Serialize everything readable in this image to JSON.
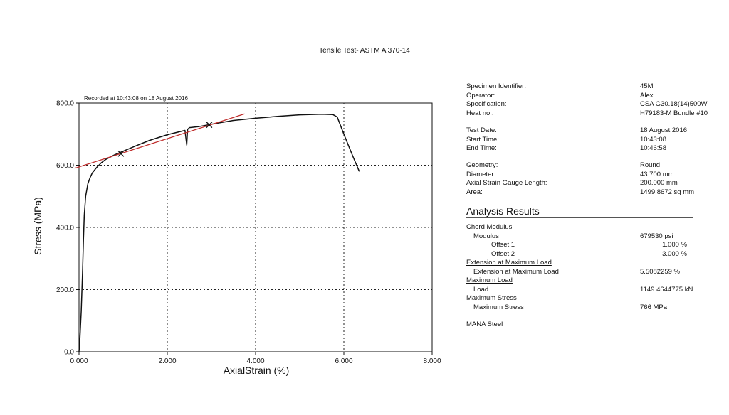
{
  "title": "Tensile Test- ASTM A 370-14",
  "chart_data": {
    "type": "line",
    "title": "Tensile Test- ASTM A 370-14",
    "annotation": "Recorded at 10:43:08 on 18 August 2016",
    "xlabel": "AxialStrain (%)",
    "ylabel": "Stress (MPa)",
    "xlim": [
      0,
      8
    ],
    "ylim": [
      0,
      800
    ],
    "xticks": [
      "0.000",
      "2.000",
      "4.000",
      "6.000",
      "8.000"
    ],
    "yticks": [
      "0.0",
      "200.0",
      "400.0",
      "600.0",
      "800.0"
    ],
    "grid": true,
    "series": [
      {
        "color": "#111111",
        "x": [
          0.0,
          0.02,
          0.05,
          0.08,
          0.1,
          0.12,
          0.15,
          0.2,
          0.25,
          0.3,
          0.4,
          0.5,
          0.6,
          0.8,
          1.0,
          1.3,
          1.6,
          2.0,
          2.4,
          2.44,
          2.46,
          2.5,
          2.7,
          3.0,
          3.5,
          4.0,
          4.5,
          5.0,
          5.5,
          5.75,
          5.85,
          6.0,
          6.2,
          6.35
        ],
        "y": [
          0,
          40,
          130,
          260,
          360,
          440,
          500,
          540,
          560,
          575,
          593,
          607,
          618,
          633,
          645,
          663,
          680,
          698,
          712,
          665,
          715,
          721,
          724,
          732,
          744,
          751,
          757,
          762,
          764,
          763,
          755,
          700,
          630,
          580
        ]
      },
      {
        "color": "#c0302f",
        "x": [
          -0.1,
          3.75
        ],
        "y": [
          590,
          765
        ]
      }
    ],
    "markers": [
      {
        "x": 0.95,
        "y": 637
      },
      {
        "x": 2.95,
        "y": 730
      }
    ]
  },
  "specimen": [
    {
      "label": "Specimen Identifier:",
      "value": "45M"
    },
    {
      "label": "Operator:",
      "value": "Alex"
    },
    {
      "label": "Specification:",
      "value": "CSA G30.18(14)500W"
    },
    {
      "label": "Heat no.:",
      "value": "H79183-M Bundle #10"
    }
  ],
  "timing": [
    {
      "label": "Test Date:",
      "value": "18 August 2016"
    },
    {
      "label": "Start Time:",
      "value": "10:43:08"
    },
    {
      "label": "End Time:",
      "value": "10:46:58"
    }
  ],
  "geometry": [
    {
      "label": "Geometry:",
      "value": "Round"
    },
    {
      "label": "Diameter:",
      "value": "43.700 mm"
    },
    {
      "label": "Axial Strain Gauge Length:",
      "value": "200.000 mm"
    },
    {
      "label": "Area:",
      "value": "1499.8672 sq mm"
    }
  ],
  "analysis": {
    "title": "Analysis Results",
    "rows": [
      {
        "label": "Chord Modulus",
        "value": "",
        "level": "head"
      },
      {
        "label": "Modulus",
        "value": "679530 psi",
        "level": "i1"
      },
      {
        "label": "Offset 1",
        "value": "1.000 %",
        "level": "i2"
      },
      {
        "label": "Offset 2",
        "value": "3.000 %",
        "level": "i2"
      },
      {
        "label": "Extension at Maximum Load",
        "value": "",
        "level": "head"
      },
      {
        "label": "Extension at Maximum Load",
        "value": "5.5082259 %",
        "level": "i1"
      },
      {
        "label": "Maximum Load",
        "value": "",
        "level": "head"
      },
      {
        "label": "Load",
        "value": "1149.4644775 kN",
        "level": "i1"
      },
      {
        "label": "Maximum Stress",
        "value": "",
        "level": "head"
      },
      {
        "label": "Maximum Stress",
        "value": "766 MPa",
        "level": "i1"
      }
    ]
  },
  "footer": "MANA Steel"
}
